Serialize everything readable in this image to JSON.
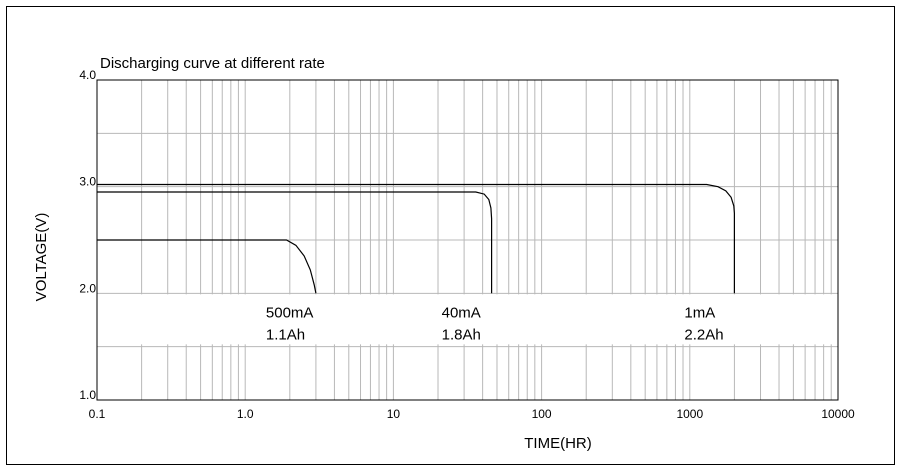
{
  "chart_data": {
    "type": "line",
    "title": "Discharging curve at different rate",
    "xlabel": "TIME(HR)",
    "ylabel": "VOLTAGE(V)",
    "x_scale": "log",
    "xlim": [
      0.1,
      10000
    ],
    "ylim": [
      1.0,
      4.0
    ],
    "x_ticks": [
      "0.1",
      "1.0",
      "10",
      "100",
      "1000",
      "10000"
    ],
    "y_ticks": [
      "1.0",
      "2.0",
      "3.0",
      "4.0"
    ],
    "grid": true,
    "colors": {
      "line": "#000000",
      "grid": "#b8b8b8",
      "border": "#000000"
    },
    "series": [
      {
        "name": "500mA",
        "capacity": "1.1Ah",
        "x": [
          0.1,
          1.9,
          2.2,
          2.5,
          2.75,
          2.92,
          3.0
        ],
        "y": [
          2.5,
          2.5,
          2.45,
          2.35,
          2.22,
          2.08,
          2.0
        ]
      },
      {
        "name": "40mA",
        "capacity": "1.8Ah",
        "x": [
          0.1,
          36,
          41,
          44,
          45.5,
          46,
          46
        ],
        "y": [
          2.95,
          2.95,
          2.93,
          2.88,
          2.8,
          2.7,
          2.0
        ]
      },
      {
        "name": "1mA",
        "capacity": "2.2Ah",
        "x": [
          0.1,
          1300,
          1550,
          1750,
          1900,
          1980,
          2000,
          2000
        ],
        "y": [
          3.02,
          3.02,
          3.0,
          2.96,
          2.9,
          2.82,
          2.75,
          2.0
        ]
      }
    ]
  }
}
